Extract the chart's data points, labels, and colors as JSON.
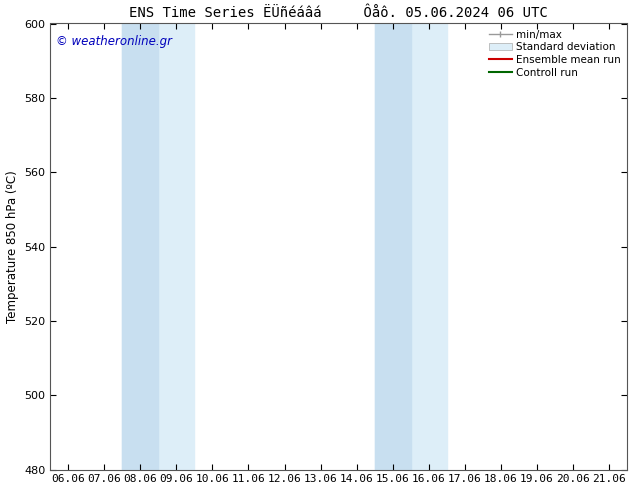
{
  "title": "ENS Time Series ËÜñéáâá     Ôåô. 05.06.2024 06 UTC",
  "ylabel": "Temperature 850 hPa (ºC)",
  "ylim": [
    480,
    600
  ],
  "yticks": [
    480,
    500,
    520,
    540,
    560,
    580,
    600
  ],
  "x_labels": [
    "06.06",
    "07.06",
    "08.06",
    "09.06",
    "10.06",
    "11.06",
    "12.06",
    "13.06",
    "14.06",
    "15.06",
    "16.06",
    "17.06",
    "18.06",
    "19.06",
    "20.06",
    "21.06"
  ],
  "x_values": [
    0,
    1,
    2,
    3,
    4,
    5,
    6,
    7,
    8,
    9,
    10,
    11,
    12,
    13,
    14,
    15
  ],
  "shaded_outer_1": [
    2.0,
    4.0
  ],
  "shaded_inner_1": [
    2.0,
    3.0
  ],
  "shaded_outer_2": [
    9.0,
    11.0
  ],
  "shaded_inner_2": [
    9.0,
    10.0
  ],
  "color_outer": "#ddeef8",
  "color_inner": "#c8dff0",
  "watermark_text": "© weatheronline.gr",
  "watermark_color": "#0000bb",
  "bg_color": "#ffffff",
  "plot_bg_color": "#ffffff",
  "border_color": "#555555",
  "title_fontsize": 10,
  "label_fontsize": 8.5,
  "tick_fontsize": 8
}
